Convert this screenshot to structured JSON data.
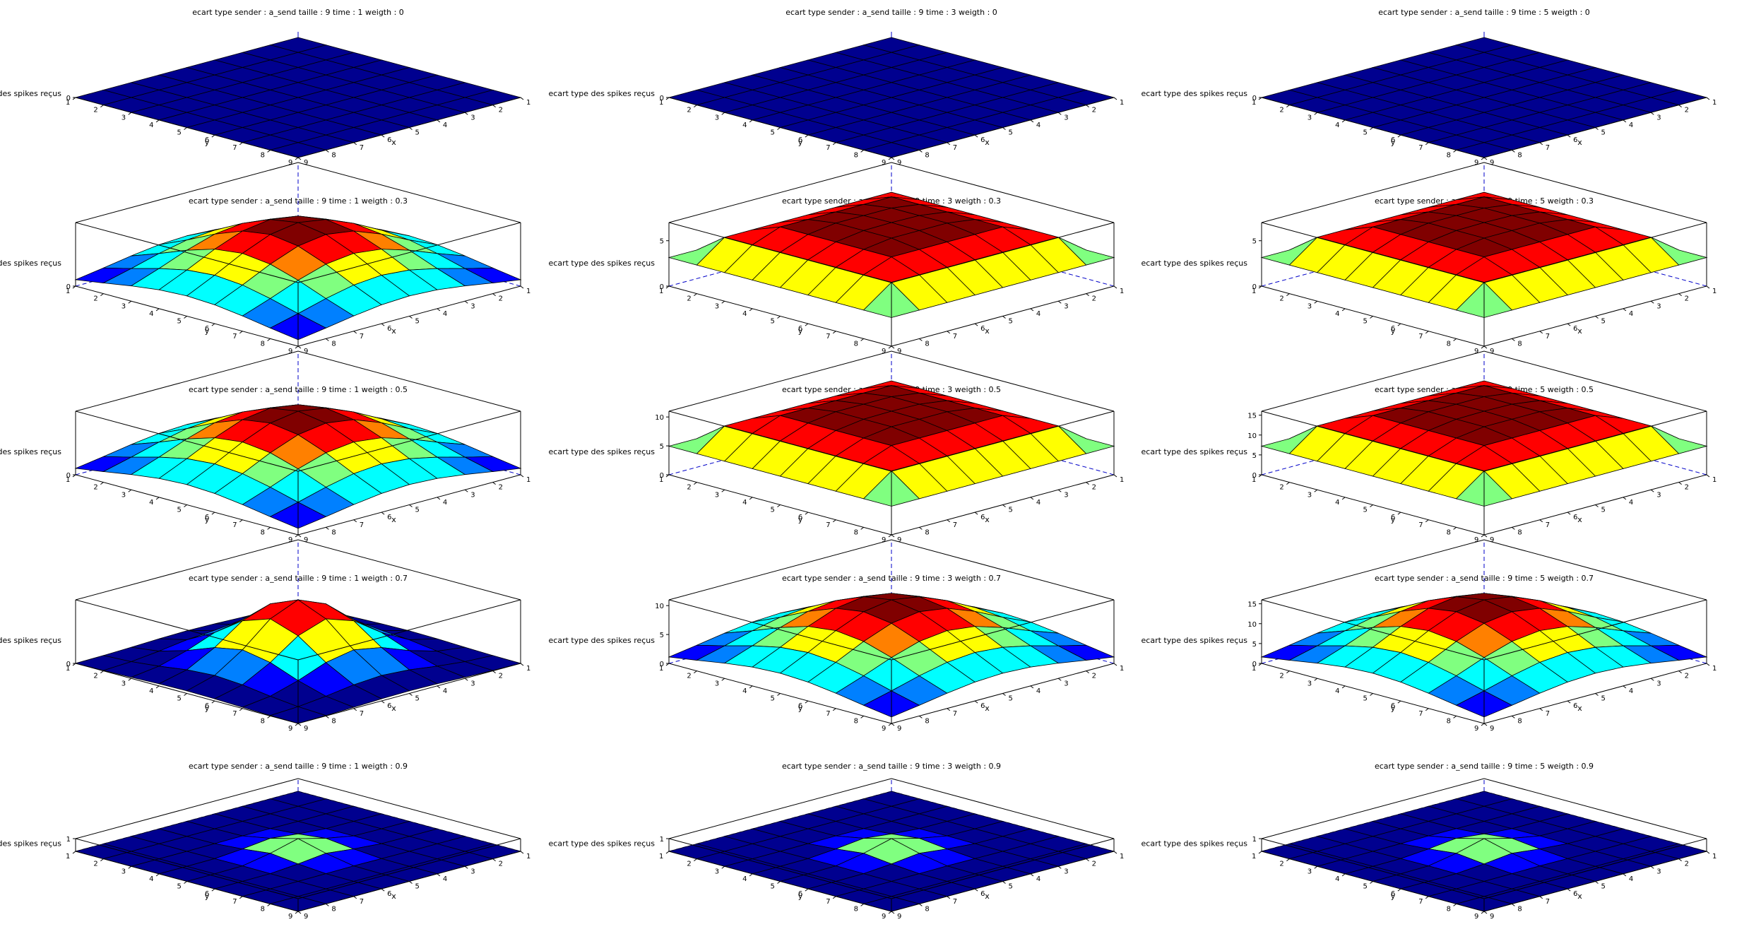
{
  "figure": {
    "colormap": [
      "#00008f",
      "#0000ff",
      "#0080ff",
      "#00ffff",
      "#80ff80",
      "#ffff00",
      "#ff8000",
      "#ff0000",
      "#800000"
    ]
  },
  "chart_data": [
    {
      "type": "surface3d",
      "title": "ecart type sender : a_send taille : 9 time : 1 weigth : 0",
      "xlabel": "x",
      "ylabel": "y",
      "zlabel": "ecart type des spikes reçus",
      "xticks": [
        1,
        2,
        3,
        4,
        5,
        6,
        7,
        8,
        9
      ],
      "yticks": [
        1,
        2,
        3,
        4,
        5,
        6,
        7,
        8,
        9
      ],
      "zticks": [
        0
      ],
      "zlim": [
        0,
        1
      ],
      "peak": 0,
      "shape": "flat"
    },
    {
      "type": "surface3d",
      "title": "ecart type sender : a_send taille : 9 time : 3 weigth : 0",
      "xlabel": "x",
      "ylabel": "y",
      "zlabel": "ecart type des spikes reçus",
      "xticks": [
        1,
        2,
        3,
        4,
        5,
        6,
        7,
        8,
        9
      ],
      "yticks": [
        1,
        2,
        3,
        4,
        5,
        6,
        7,
        8,
        9
      ],
      "zticks": [
        0
      ],
      "zlim": [
        0,
        1
      ],
      "peak": 0,
      "shape": "flat"
    },
    {
      "type": "surface3d",
      "title": "ecart type sender : a_send taille : 9 time : 5 weigth : 0",
      "xlabel": "x",
      "ylabel": "y",
      "zlabel": "ecart type des spikes reçus",
      "xticks": [
        1,
        2,
        3,
        4,
        5,
        6,
        7,
        8,
        9
      ],
      "yticks": [
        1,
        2,
        3,
        4,
        5,
        6,
        7,
        8,
        9
      ],
      "zticks": [
        0
      ],
      "zlim": [
        0,
        1
      ],
      "peak": 0,
      "shape": "flat"
    },
    {
      "type": "surface3d",
      "title": "ecart type sender : a_send taille : 9 time : 1 weigth : 0.3",
      "xlabel": "x",
      "ylabel": "y",
      "zlabel": "ecart type des spikes reçus",
      "xticks": [
        1,
        2,
        3,
        4,
        5,
        6,
        7,
        8,
        9
      ],
      "yticks": [
        1,
        2,
        3,
        4,
        5,
        6,
        7,
        8,
        9
      ],
      "zticks": [
        0
      ],
      "zlim": [
        0,
        2
      ],
      "peak": 1.5,
      "shape": "hill"
    },
    {
      "type": "surface3d",
      "title": "ecart type sender : a_send taille : 9 time : 3 weigth : 0.3",
      "xlabel": "x",
      "ylabel": "y",
      "zlabel": "ecart type des spikes reçus",
      "xticks": [
        1,
        2,
        3,
        4,
        5,
        6,
        7,
        8,
        9
      ],
      "yticks": [
        1,
        2,
        3,
        4,
        5,
        6,
        7,
        8,
        9
      ],
      "zticks": [
        0,
        5
      ],
      "zlim": [
        0,
        7
      ],
      "peak": 6.5,
      "shape": "plateau"
    },
    {
      "type": "surface3d",
      "title": "ecart type sender : a_send taille : 9 time : 5 weigth : 0.3",
      "xlabel": "x",
      "ylabel": "y",
      "zlabel": "ecart type des spikes reçus",
      "xticks": [
        1,
        2,
        3,
        4,
        5,
        6,
        7,
        8,
        9
      ],
      "yticks": [
        1,
        2,
        3,
        4,
        5,
        6,
        7,
        8,
        9
      ],
      "zticks": [
        0,
        5
      ],
      "zlim": [
        0,
        7
      ],
      "peak": 6.5,
      "shape": "plateau"
    },
    {
      "type": "surface3d",
      "title": "ecart type sender : a_send taille : 9 time : 1 weigth : 0.5",
      "xlabel": "x",
      "ylabel": "y",
      "zlabel": "ecart type des spikes reçus",
      "xticks": [
        1,
        2,
        3,
        4,
        5,
        6,
        7,
        8,
        9
      ],
      "yticks": [
        1,
        2,
        3,
        4,
        5,
        6,
        7,
        8,
        9
      ],
      "zticks": [
        0
      ],
      "zlim": [
        0,
        2
      ],
      "peak": 1.5,
      "shape": "hill"
    },
    {
      "type": "surface3d",
      "title": "ecart type sender : a_send taille : 9 time : 3 weigth : 0.5",
      "xlabel": "x",
      "ylabel": "y",
      "zlabel": "ecart type des spikes reçus",
      "xticks": [
        1,
        2,
        3,
        4,
        5,
        6,
        7,
        8,
        9
      ],
      "yticks": [
        1,
        2,
        3,
        4,
        5,
        6,
        7,
        8,
        9
      ],
      "zticks": [
        0,
        5,
        10
      ],
      "zlim": [
        0,
        11
      ],
      "peak": 10,
      "shape": "plateau"
    },
    {
      "type": "surface3d",
      "title": "ecart type sender : a_send taille : 9 time : 5 weigth : 0.5",
      "xlabel": "x",
      "ylabel": "y",
      "zlabel": "ecart type des spikes reçus",
      "xticks": [
        1,
        2,
        3,
        4,
        5,
        6,
        7,
        8,
        9
      ],
      "yticks": [
        1,
        2,
        3,
        4,
        5,
        6,
        7,
        8,
        9
      ],
      "zticks": [
        0,
        5,
        10,
        15
      ],
      "zlim": [
        0,
        16
      ],
      "peak": 15,
      "shape": "plateau"
    },
    {
      "type": "surface3d",
      "title": "ecart type sender : a_send taille : 9 time : 1 weigth : 0.7",
      "xlabel": "x",
      "ylabel": "y",
      "zlabel": "ecart type des spikes reçus",
      "xticks": [
        1,
        2,
        3,
        4,
        5,
        6,
        7,
        8,
        9
      ],
      "yticks": [
        1,
        2,
        3,
        4,
        5,
        6,
        7,
        8,
        9
      ],
      "zticks": [
        0
      ],
      "zlim": [
        0,
        1.3
      ],
      "peak": 1.3,
      "shape": "peak"
    },
    {
      "type": "surface3d",
      "title": "ecart type sender : a_send taille : 9 time : 3 weigth : 0.7",
      "xlabel": "x",
      "ylabel": "y",
      "zlabel": "ecart type des spikes reçus",
      "xticks": [
        1,
        2,
        3,
        4,
        5,
        6,
        7,
        8,
        9
      ],
      "yticks": [
        1,
        2,
        3,
        4,
        5,
        6,
        7,
        8,
        9
      ],
      "zticks": [
        0,
        5,
        10
      ],
      "zlim": [
        0,
        11
      ],
      "peak": 11,
      "shape": "hill"
    },
    {
      "type": "surface3d",
      "title": "ecart type sender : a_send taille : 9 time : 5 weigth : 0.7",
      "xlabel": "x",
      "ylabel": "y",
      "zlabel": "ecart type des spikes reçus",
      "xticks": [
        1,
        2,
        3,
        4,
        5,
        6,
        7,
        8,
        9
      ],
      "yticks": [
        1,
        2,
        3,
        4,
        5,
        6,
        7,
        8,
        9
      ],
      "zticks": [
        0,
        5,
        10,
        15
      ],
      "zlim": [
        0,
        16
      ],
      "peak": 16,
      "shape": "hill"
    },
    {
      "type": "surface3d",
      "title": "ecart type sender : a_send taille : 9 time : 1 weigth : 0.9",
      "xlabel": "x",
      "ylabel": "y",
      "zlabel": "ecart type des spikes reçus",
      "xticks": [
        1,
        2,
        3,
        4,
        5,
        6,
        7,
        8,
        9
      ],
      "yticks": [
        1,
        2,
        3,
        4,
        5,
        6,
        7,
        8,
        9
      ],
      "zticks": [
        1
      ],
      "zlim": [
        0,
        1
      ],
      "peak": 1,
      "shape": "spike"
    },
    {
      "type": "surface3d",
      "title": "ecart type sender : a_send taille : 9 time : 3 weigth : 0.9",
      "xlabel": "x",
      "ylabel": "y",
      "zlabel": "ecart type des spikes reçus",
      "xticks": [
        1,
        2,
        3,
        4,
        5,
        6,
        7,
        8,
        9
      ],
      "yticks": [
        1,
        2,
        3,
        4,
        5,
        6,
        7,
        8,
        9
      ],
      "zticks": [
        1
      ],
      "zlim": [
        0,
        1
      ],
      "peak": 1,
      "shape": "spike"
    },
    {
      "type": "surface3d",
      "title": "ecart type sender : a_send taille : 9 time : 5 weigth : 0.9",
      "xlabel": "x",
      "ylabel": "y",
      "zlabel": "ecart type des spikes reçus",
      "xticks": [
        1,
        2,
        3,
        4,
        5,
        6,
        7,
        8,
        9
      ],
      "yticks": [
        1,
        2,
        3,
        4,
        5,
        6,
        7,
        8,
        9
      ],
      "zticks": [
        1
      ],
      "zlim": [
        0,
        1
      ],
      "peak": 1,
      "shape": "spike"
    }
  ]
}
